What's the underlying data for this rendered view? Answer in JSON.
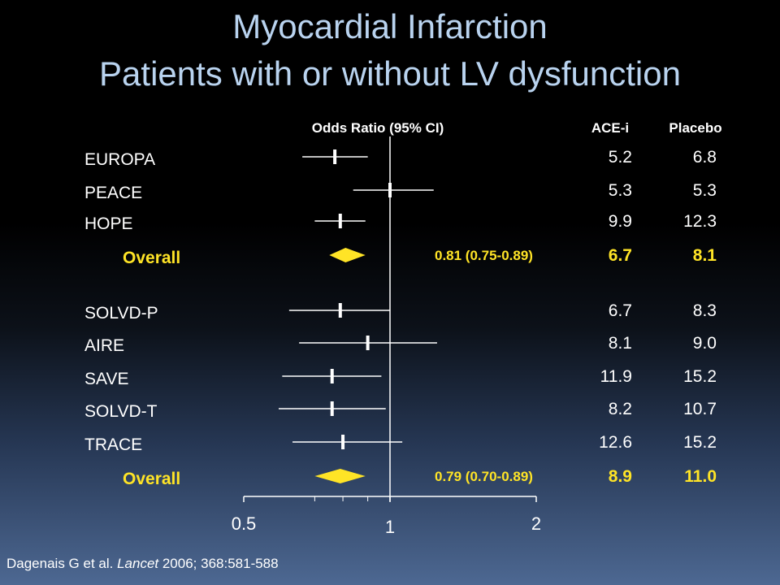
{
  "title": "Myocardial Infarction",
  "subtitle": "Patients with or without LV dysfunction",
  "citation": {
    "authors": "Dagenais G et al. ",
    "journal": "Lancet",
    "rest": " 2006; 368:581-588"
  },
  "colors": {
    "text": "#ffffff",
    "overall": "#ffe426",
    "title": "#b9d3ef",
    "axis": "#ffffff"
  },
  "chart_data": {
    "type": "forest",
    "xlabel": "Odds Ratio (95% CI)",
    "xscale": "log",
    "xlim": [
      0.5,
      2
    ],
    "xticks": [
      {
        "value": 0.5,
        "label": "0.5"
      },
      {
        "value": 1,
        "label": "1"
      },
      {
        "value": 2,
        "label": "2"
      }
    ],
    "minor_ticks": [
      0.7,
      0.8,
      0.9
    ],
    "reference_line": 1,
    "columns": [
      "ACE-i",
      "Placebo"
    ],
    "rows": [
      {
        "label": "EUROPA",
        "or": 0.77,
        "lo": 0.66,
        "hi": 0.9,
        "ace": "5.2",
        "placebo": "6.8"
      },
      {
        "label": "PEACE",
        "or": 1.0,
        "lo": 0.84,
        "hi": 1.23,
        "ace": "5.3",
        "placebo": "5.3"
      },
      {
        "label": "HOPE",
        "or": 0.79,
        "lo": 0.7,
        "hi": 0.89,
        "ace": "9.9",
        "placebo": "12.3"
      },
      {
        "label": "Overall",
        "overall": true,
        "or": 0.81,
        "lo": 0.75,
        "hi": 0.89,
        "ci_text": "0.81  (0.75-0.89)",
        "ace": "6.7",
        "placebo": "8.1"
      },
      {
        "label": "SOLVD-P",
        "or": 0.79,
        "lo": 0.62,
        "hi": 1.0,
        "ace": "6.7",
        "placebo": "8.3"
      },
      {
        "label": "AIRE",
        "or": 0.9,
        "lo": 0.65,
        "hi": 1.25,
        "ace": "8.1",
        "placebo": "9.0"
      },
      {
        "label": "SAVE",
        "or": 0.76,
        "lo": 0.6,
        "hi": 0.96,
        "ace": "11.9",
        "placebo": "15.2"
      },
      {
        "label": "SOLVD-T",
        "or": 0.76,
        "lo": 0.59,
        "hi": 0.98,
        "ace": "8.2",
        "placebo": "10.7"
      },
      {
        "label": "TRACE",
        "or": 0.8,
        "lo": 0.63,
        "hi": 1.06,
        "ace": "12.6",
        "placebo": "15.2"
      },
      {
        "label": "Overall",
        "overall": true,
        "or": 0.79,
        "lo": 0.7,
        "hi": 0.89,
        "ci_text": "0.79  (0.70-0.89)",
        "ace": "8.9",
        "placebo": "11.0"
      }
    ]
  }
}
